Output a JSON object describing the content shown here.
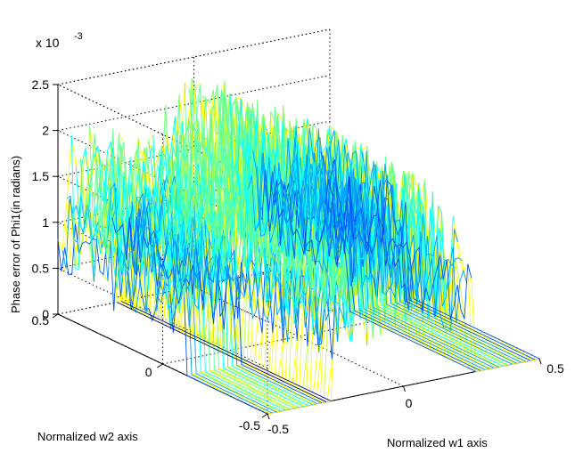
{
  "chart_data": {
    "type": "surface",
    "zlabel": "Phase error of Phi1(in radians)",
    "xlabel": "Normalized w1 axis",
    "ylabel": "Normalized w2 axis",
    "z_multiplier_label": "x 10",
    "z_multiplier_exponent": "-3",
    "xlim": [
      -0.5,
      0.5
    ],
    "ylim": [
      -0.5,
      0.5
    ],
    "zlim": [
      0,
      0.0025
    ],
    "x_ticks": [
      "-0.5",
      "0",
      "0.5"
    ],
    "y_ticks": [
      "0.5",
      "0",
      "-0.5"
    ],
    "z_ticks": [
      "0",
      "0.5",
      "1",
      "1.5",
      "2",
      "2.5"
    ],
    "grid": true,
    "colormap": "jet",
    "peak_regions": [
      {
        "name": "",
        "x_range": [
          -0.5,
          -0.3
        ],
        "y_range": [
          -0.1,
          0.5
        ],
        "max_z": 0.0022
      },
      {
        "name": "",
        "x_range": [
          -0.25,
          0.25
        ],
        "y_range": [
          -0.5,
          0.5
        ],
        "max_z": 0.0024
      },
      {
        "name": "",
        "x_range": [
          0.25,
          0.5
        ],
        "y_range": [
          0.1,
          0.5
        ],
        "max_z": 0.0017
      }
    ],
    "flat_value": 0
  }
}
